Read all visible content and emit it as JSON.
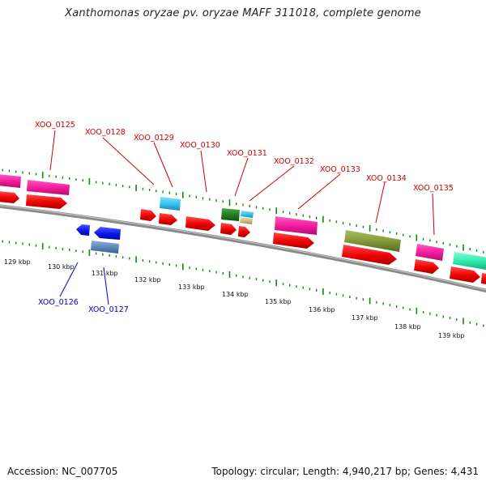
{
  "header": {
    "title": "Xanthomonas oryzae pv. oryzae MAFF 311018, complete genome"
  },
  "footer": {
    "accession": "Accession: NC_007705",
    "topology": "Topology: circular; Length: 4,940,217 bp; Genes: 4,431"
  },
  "colors": {
    "label_top": "#cc0000",
    "label_bottom": "#0000cc",
    "backbone": "#8a8a8a",
    "tick": "#118811"
  },
  "genes_top": [
    {
      "id": "XOO_0125",
      "color": "#cc0000"
    },
    {
      "id": "XOO_0128",
      "color": "#cc0000"
    },
    {
      "id": "XOO_0129",
      "color": "#cc0000"
    },
    {
      "id": "XOO_0130",
      "color": "#cc0000"
    },
    {
      "id": "XOO_0131",
      "color": "#cc0000"
    },
    {
      "id": "XOO_0132",
      "color": "#cc0000"
    },
    {
      "id": "XOO_0133",
      "color": "#cc0000"
    },
    {
      "id": "XOO_0134",
      "color": "#cc0000"
    },
    {
      "id": "XOO_0135",
      "color": "#cc0000"
    }
  ],
  "genes_bottom": [
    {
      "id": "XOO_0126",
      "color": "#0000cc"
    },
    {
      "id": "XOO_0127",
      "color": "#0000cc"
    }
  ],
  "kbp_labels": [
    "129 kbp",
    "130 kbp",
    "131 kbp",
    "132 kbp",
    "133 kbp",
    "134 kbp",
    "135 kbp",
    "136 kbp",
    "137 kbp",
    "138 kbp",
    "139 kbp"
  ]
}
